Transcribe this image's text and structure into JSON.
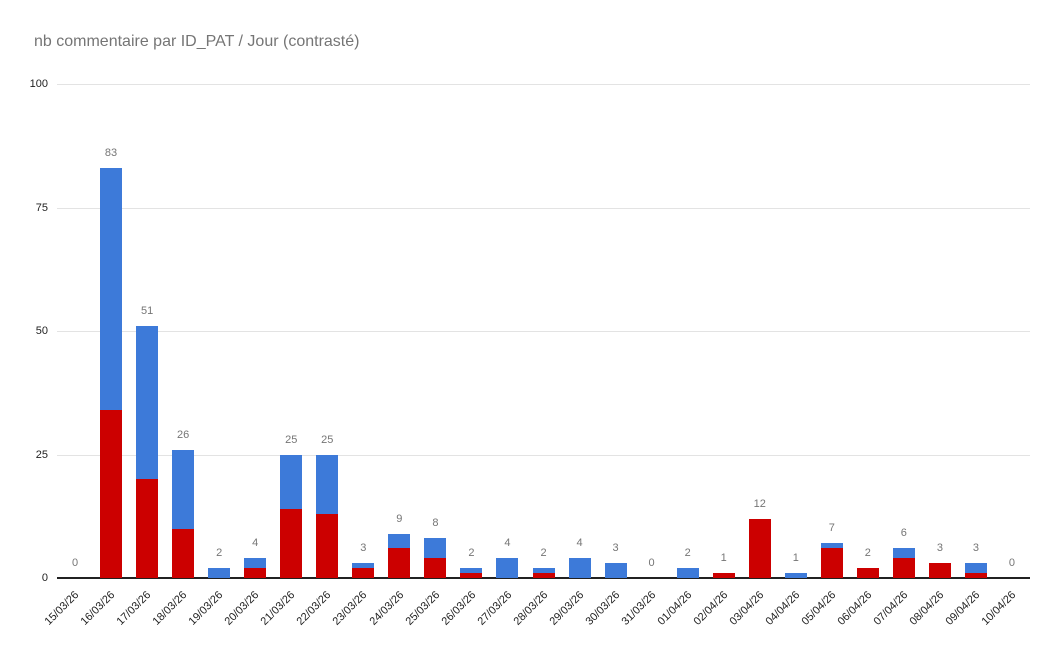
{
  "page": {
    "background": "#ffffff"
  },
  "chart_data": {
    "type": "bar",
    "stacked": true,
    "title": "nb commentaire par ID_PAT / Jour (contrasté)",
    "title_color": "#757575",
    "categories": [
      "15/03/26",
      "16/03/26",
      "17/03/26",
      "18/03/26",
      "19/03/26",
      "20/03/26",
      "21/03/26",
      "22/03/26",
      "23/03/26",
      "24/03/26",
      "25/03/26",
      "26/03/26",
      "27/03/26",
      "28/03/26",
      "29/03/26",
      "30/03/26",
      "31/03/26",
      "01/04/26",
      "02/04/26",
      "03/04/26",
      "04/04/26",
      "05/04/26",
      "06/04/26",
      "07/04/26",
      "08/04/26",
      "09/04/26",
      "10/04/26"
    ],
    "series": [
      {
        "color": "#cc0000",
        "values": [
          0,
          34,
          20,
          10,
          0,
          2,
          14,
          13,
          2,
          6,
          4,
          1,
          0,
          1,
          0,
          0,
          0,
          0,
          1,
          12,
          0,
          6,
          2,
          4,
          3,
          1,
          0
        ]
      },
      {
        "color": "#3d7ad9",
        "values": [
          0,
          49,
          31,
          16,
          2,
          2,
          11,
          12,
          1,
          3,
          4,
          1,
          4,
          1,
          4,
          3,
          0,
          2,
          0,
          0,
          1,
          1,
          0,
          2,
          0,
          2,
          0
        ]
      }
    ],
    "totals": [
      0,
      83,
      51,
      26,
      2,
      4,
      25,
      25,
      3,
      9,
      8,
      2,
      4,
      2,
      4,
      3,
      0,
      2,
      1,
      12,
      1,
      7,
      2,
      6,
      3,
      3,
      0
    ],
    "total_label_color": "#757575",
    "xlabel": "",
    "ylabel": "",
    "ylim": [
      0,
      100
    ],
    "yticks": [
      0,
      25,
      50,
      75,
      100
    ],
    "grid": true,
    "gridline_color": "#e3e3e3",
    "axis_line_color": "#212121",
    "axis_label_color": "#1f1f1f",
    "legend": "none"
  }
}
